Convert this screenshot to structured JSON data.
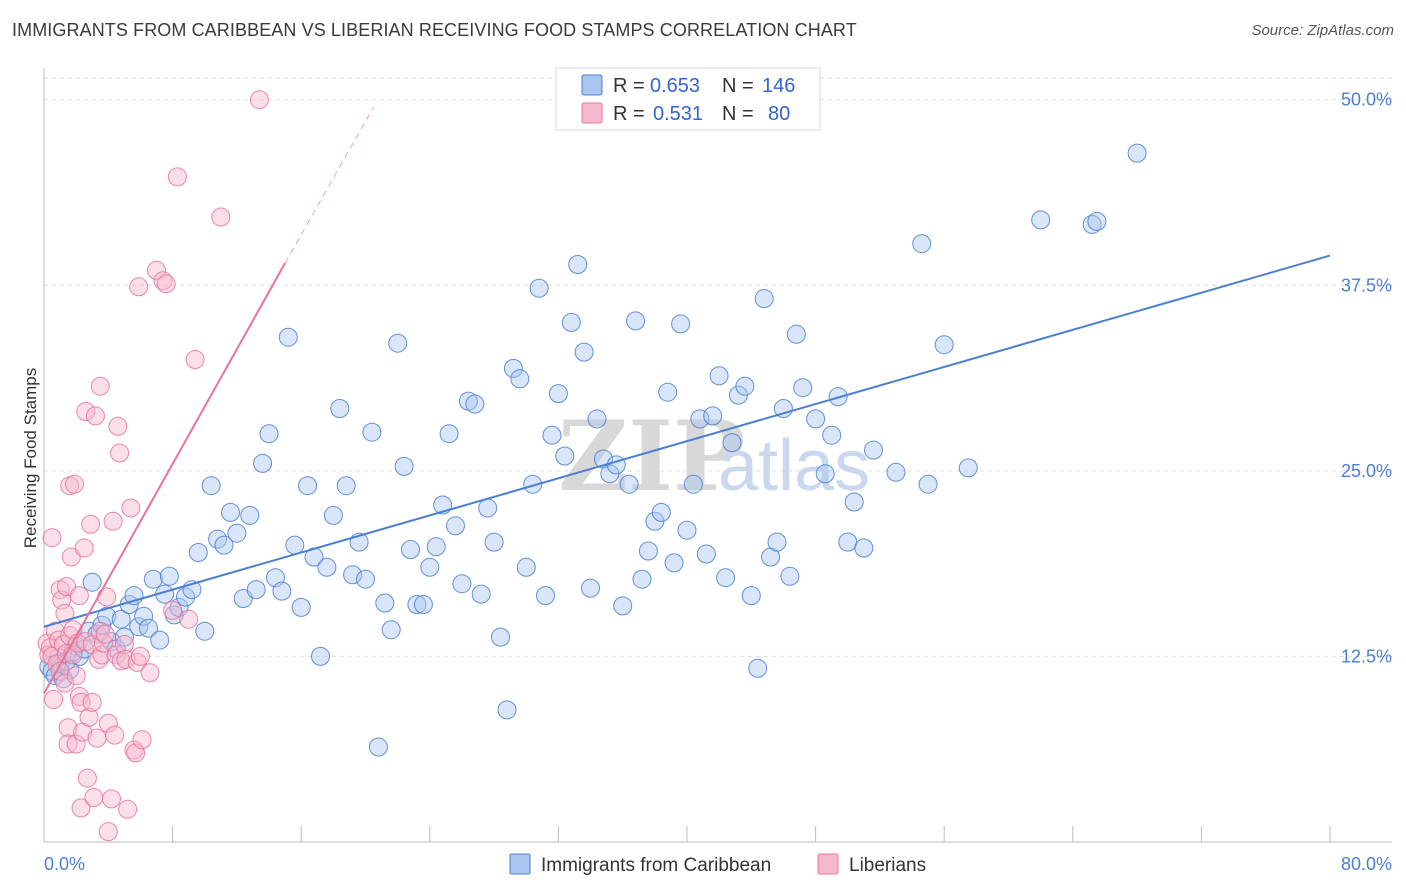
{
  "title": "IMMIGRANTS FROM CARIBBEAN VS LIBERIAN RECEIVING FOOD STAMPS CORRELATION CHART",
  "source": "Source: ZipAtlas.com",
  "watermark": {
    "zip": "ZIP",
    "atlas": "atlas"
  },
  "colors": {
    "blue": "#4a7fd1",
    "blue_fill": "#aac6ef",
    "pink": "#e8739a",
    "pink_fill": "#f6b9cc"
  },
  "legend": {
    "rows": [
      {
        "r_label": "R =",
        "r_value": "0.653",
        "n_label": "N =",
        "n_value": "146"
      },
      {
        "r_label": "R =",
        "r_value": "0.531",
        "n_label": "N =",
        "n_value": "80"
      }
    ]
  },
  "bottom_legend": [
    "Immigrants from Caribbean",
    "Liberians"
  ],
  "chart_data": {
    "type": "scatter",
    "xlabel": "",
    "ylabel": "Receiving Food Stamps",
    "xlim": [
      0,
      80
    ],
    "ylim": [
      0,
      52
    ],
    "x_tick_labels": [
      {
        "value": 0,
        "label": "0.0%"
      },
      {
        "value": 80,
        "label": "80.0%"
      }
    ],
    "y_tick_labels": [
      {
        "value": 12.5,
        "label": "12.5%"
      },
      {
        "value": 25,
        "label": "25.0%"
      },
      {
        "value": 37.5,
        "label": "37.5%"
      },
      {
        "value": 50,
        "label": "50.0%"
      }
    ],
    "grid": true,
    "series": [
      {
        "name": "Immigrants from Caribbean",
        "color": "#4a7fd1",
        "trend": {
          "x": [
            0,
            80
          ],
          "y": [
            14.5,
            39.5
          ]
        },
        "points": [
          [
            0.3,
            11.8
          ],
          [
            0.5,
            11.5
          ],
          [
            0.7,
            11.2
          ],
          [
            0.9,
            12.4
          ],
          [
            1.0,
            12.0
          ],
          [
            1.2,
            11.0
          ],
          [
            1.4,
            12.2
          ],
          [
            1.6,
            11.6
          ],
          [
            1.8,
            12.8
          ],
          [
            2.0,
            13.2
          ],
          [
            2.2,
            12.5
          ],
          [
            2.5,
            13.0
          ],
          [
            2.8,
            14.2
          ],
          [
            3.0,
            17.5
          ],
          [
            3.3,
            14.0
          ],
          [
            3.6,
            14.6
          ],
          [
            3.9,
            15.2
          ],
          [
            4.2,
            13.5
          ],
          [
            4.5,
            13.0
          ],
          [
            4.8,
            15.0
          ],
          [
            5.0,
            13.8
          ],
          [
            5.3,
            16.0
          ],
          [
            5.6,
            16.6
          ],
          [
            5.9,
            14.5
          ],
          [
            6.2,
            15.2
          ],
          [
            6.5,
            14.4
          ],
          [
            6.8,
            17.7
          ],
          [
            7.2,
            13.6
          ],
          [
            7.5,
            16.7
          ],
          [
            7.8,
            17.9
          ],
          [
            8.1,
            15.3
          ],
          [
            8.4,
            15.8
          ],
          [
            8.8,
            16.5
          ],
          [
            9.2,
            17.0
          ],
          [
            9.6,
            19.5
          ],
          [
            10.0,
            14.2
          ],
          [
            10.4,
            24.0
          ],
          [
            10.8,
            20.4
          ],
          [
            11.2,
            20.0
          ],
          [
            11.6,
            22.2
          ],
          [
            12.0,
            20.8
          ],
          [
            12.4,
            16.4
          ],
          [
            12.8,
            22.0
          ],
          [
            13.2,
            17.0
          ],
          [
            13.6,
            25.5
          ],
          [
            14.0,
            27.5
          ],
          [
            14.4,
            17.8
          ],
          [
            14.8,
            16.9
          ],
          [
            15.2,
            34.0
          ],
          [
            15.6,
            20.0
          ],
          [
            16.0,
            15.8
          ],
          [
            16.4,
            24.0
          ],
          [
            16.8,
            19.2
          ],
          [
            17.2,
            12.5
          ],
          [
            17.6,
            18.5
          ],
          [
            18.0,
            22.0
          ],
          [
            18.4,
            29.2
          ],
          [
            18.8,
            24.0
          ],
          [
            19.2,
            18.0
          ],
          [
            19.6,
            20.2
          ],
          [
            20.0,
            17.7
          ],
          [
            20.4,
            27.6
          ],
          [
            20.8,
            6.4
          ],
          [
            21.2,
            16.1
          ],
          [
            21.6,
            14.3
          ],
          [
            22.0,
            33.6
          ],
          [
            22.4,
            25.3
          ],
          [
            22.8,
            19.7
          ],
          [
            23.2,
            16.0
          ],
          [
            23.6,
            16.0
          ],
          [
            24.0,
            18.5
          ],
          [
            24.4,
            19.9
          ],
          [
            24.8,
            22.7
          ],
          [
            25.2,
            27.5
          ],
          [
            25.6,
            21.3
          ],
          [
            26.0,
            17.4
          ],
          [
            26.4,
            29.7
          ],
          [
            26.8,
            29.5
          ],
          [
            27.2,
            16.7
          ],
          [
            27.6,
            22.5
          ],
          [
            28.0,
            20.2
          ],
          [
            28.4,
            13.8
          ],
          [
            28.8,
            8.9
          ],
          [
            29.2,
            31.9
          ],
          [
            29.6,
            31.2
          ],
          [
            30.0,
            18.5
          ],
          [
            30.4,
            24.1
          ],
          [
            30.8,
            37.3
          ],
          [
            31.2,
            16.6
          ],
          [
            31.6,
            27.4
          ],
          [
            32.0,
            30.2
          ],
          [
            32.4,
            26.0
          ],
          [
            32.8,
            35.0
          ],
          [
            33.2,
            38.9
          ],
          [
            33.6,
            33.0
          ],
          [
            34.0,
            17.1
          ],
          [
            34.4,
            28.5
          ],
          [
            34.8,
            25.8
          ],
          [
            35.2,
            24.8
          ],
          [
            35.6,
            25.4
          ],
          [
            36.0,
            15.9
          ],
          [
            36.4,
            24.1
          ],
          [
            36.8,
            35.1
          ],
          [
            37.2,
            17.7
          ],
          [
            37.6,
            19.6
          ],
          [
            38.0,
            21.6
          ],
          [
            38.4,
            22.2
          ],
          [
            38.8,
            30.3
          ],
          [
            39.2,
            18.8
          ],
          [
            39.6,
            34.9
          ],
          [
            40.0,
            21.0
          ],
          [
            40.4,
            24.1
          ],
          [
            40.8,
            28.5
          ],
          [
            41.2,
            19.4
          ],
          [
            41.6,
            28.7
          ],
          [
            42.0,
            31.4
          ],
          [
            42.4,
            17.8
          ],
          [
            42.8,
            26.9
          ],
          [
            43.2,
            30.1
          ],
          [
            43.6,
            30.7
          ],
          [
            44.0,
            16.6
          ],
          [
            44.4,
            11.7
          ],
          [
            44.8,
            36.6
          ],
          [
            45.2,
            19.2
          ],
          [
            45.6,
            20.2
          ],
          [
            46.0,
            29.2
          ],
          [
            46.4,
            17.9
          ],
          [
            46.8,
            34.2
          ],
          [
            47.2,
            30.6
          ],
          [
            48.0,
            28.5
          ],
          [
            48.6,
            24.8
          ],
          [
            49.0,
            27.4
          ],
          [
            49.4,
            30.0
          ],
          [
            50.0,
            20.2
          ],
          [
            50.4,
            22.9
          ],
          [
            51.0,
            19.8
          ],
          [
            51.6,
            26.4
          ],
          [
            53.0,
            24.9
          ],
          [
            54.6,
            40.3
          ],
          [
            55.0,
            24.1
          ],
          [
            56.0,
            33.5
          ],
          [
            57.5,
            25.2
          ],
          [
            62.0,
            41.9
          ],
          [
            65.2,
            41.6
          ],
          [
            65.5,
            41.8
          ],
          [
            68.0,
            46.4
          ]
        ]
      },
      {
        "name": "Liberians",
        "color": "#e8739a",
        "trend": {
          "x": [
            0,
            15
          ],
          "y": [
            10.0,
            39.0
          ]
        },
        "trend_dashed": {
          "x": [
            15,
            20.5
          ],
          "y": [
            39.0,
            49.5
          ]
        },
        "points": [
          [
            0.2,
            13.4
          ],
          [
            0.3,
            12.6
          ],
          [
            0.4,
            13.1
          ],
          [
            0.5,
            12.5
          ],
          [
            0.5,
            20.5
          ],
          [
            0.6,
            9.6
          ],
          [
            0.7,
            14.2
          ],
          [
            0.8,
            12.0
          ],
          [
            0.9,
            13.6
          ],
          [
            1.0,
            11.5
          ],
          [
            1.0,
            17.0
          ],
          [
            1.1,
            16.3
          ],
          [
            1.2,
            13.3
          ],
          [
            1.3,
            15.4
          ],
          [
            1.3,
            10.7
          ],
          [
            1.4,
            17.2
          ],
          [
            1.4,
            12.7
          ],
          [
            1.5,
            7.7
          ],
          [
            1.5,
            6.6
          ],
          [
            1.6,
            24.0
          ],
          [
            1.6,
            13.9
          ],
          [
            1.7,
            19.2
          ],
          [
            1.8,
            12.6
          ],
          [
            1.8,
            14.3
          ],
          [
            1.9,
            24.1
          ],
          [
            2.0,
            11.2
          ],
          [
            2.0,
            6.6
          ],
          [
            2.1,
            13.4
          ],
          [
            2.2,
            9.8
          ],
          [
            2.2,
            16.6
          ],
          [
            2.3,
            9.4
          ],
          [
            2.3,
            2.3
          ],
          [
            2.4,
            7.4
          ],
          [
            2.5,
            19.8
          ],
          [
            2.6,
            13.5
          ],
          [
            2.6,
            29.0
          ],
          [
            2.7,
            4.3
          ],
          [
            2.8,
            8.4
          ],
          [
            2.9,
            21.4
          ],
          [
            3.0,
            13.3
          ],
          [
            3.0,
            9.4
          ],
          [
            3.1,
            3.0
          ],
          [
            3.2,
            28.7
          ],
          [
            3.3,
            7.0
          ],
          [
            3.4,
            12.3
          ],
          [
            3.5,
            14.2
          ],
          [
            3.5,
            30.7
          ],
          [
            3.6,
            12.6
          ],
          [
            3.7,
            13.4
          ],
          [
            3.8,
            14.0
          ],
          [
            3.9,
            16.5
          ],
          [
            4.0,
            0.7
          ],
          [
            4.0,
            8.0
          ],
          [
            4.2,
            2.9
          ],
          [
            4.3,
            21.6
          ],
          [
            4.4,
            7.2
          ],
          [
            4.5,
            12.6
          ],
          [
            4.6,
            28.0
          ],
          [
            4.7,
            26.2
          ],
          [
            4.8,
            12.2
          ],
          [
            5.0,
            13.3
          ],
          [
            5.1,
            12.3
          ],
          [
            5.2,
            2.2
          ],
          [
            5.4,
            22.5
          ],
          [
            5.6,
            6.2
          ],
          [
            5.7,
            6.0
          ],
          [
            5.8,
            12.1
          ],
          [
            5.9,
            37.4
          ],
          [
            6.0,
            12.5
          ],
          [
            6.1,
            6.9
          ],
          [
            6.6,
            11.4
          ],
          [
            7.0,
            38.5
          ],
          [
            7.4,
            37.8
          ],
          [
            7.6,
            37.6
          ],
          [
            8.0,
            15.6
          ],
          [
            8.3,
            44.8
          ],
          [
            9.0,
            15.0
          ],
          [
            9.4,
            32.5
          ],
          [
            11.0,
            42.1
          ],
          [
            13.4,
            50.0
          ]
        ]
      }
    ]
  }
}
